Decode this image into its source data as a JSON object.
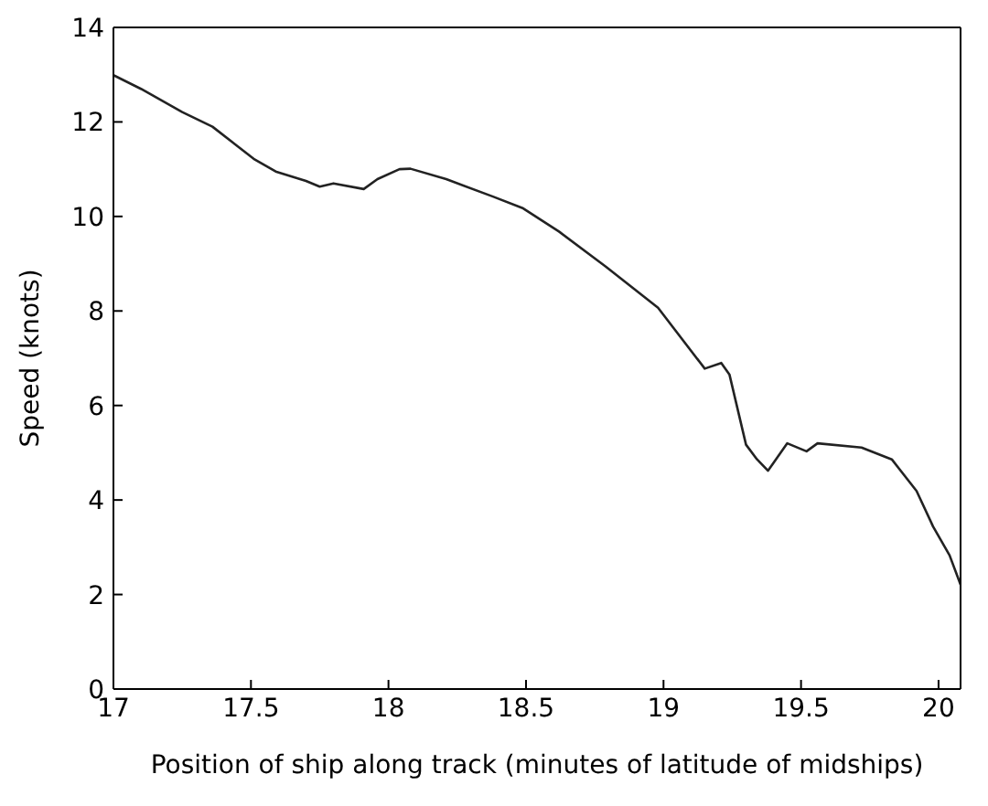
{
  "chart_data": {
    "type": "line",
    "xlabel": "Position of ship along track (minutes of latitude of midships)",
    "ylabel": "Speed (knots)",
    "xlim": [
      17,
      20.08
    ],
    "xticks": [
      17,
      17.5,
      18,
      18.5,
      19,
      19.5,
      20
    ],
    "ylim": [
      0,
      14
    ],
    "yticks": [
      0,
      2,
      4,
      6,
      8,
      10,
      12,
      14
    ],
    "legend": false,
    "marker": "none",
    "line_style": "solid",
    "series": [
      {
        "color": "#222222",
        "x": [
          17.0,
          17.1,
          17.25,
          17.36,
          17.51,
          17.59,
          17.7,
          17.75,
          17.8,
          17.91,
          17.96,
          18.04,
          18.08,
          18.21,
          18.38,
          18.49,
          18.62,
          18.79,
          18.98,
          19.15,
          19.21,
          19.24,
          19.3,
          19.34,
          19.38,
          19.45,
          19.52,
          19.56,
          19.72,
          19.83,
          19.92,
          19.98,
          20.04,
          20.08
        ],
        "values": [
          12.99,
          12.7,
          12.21,
          11.9,
          11.22,
          10.95,
          10.75,
          10.63,
          10.7,
          10.58,
          10.79,
          11.0,
          11.01,
          10.79,
          10.42,
          10.17,
          9.68,
          8.94,
          8.07,
          6.78,
          6.9,
          6.65,
          5.17,
          4.86,
          4.62,
          5.2,
          5.03,
          5.2,
          5.11,
          4.86,
          4.19,
          3.44,
          2.83,
          2.21
        ]
      }
    ]
  }
}
